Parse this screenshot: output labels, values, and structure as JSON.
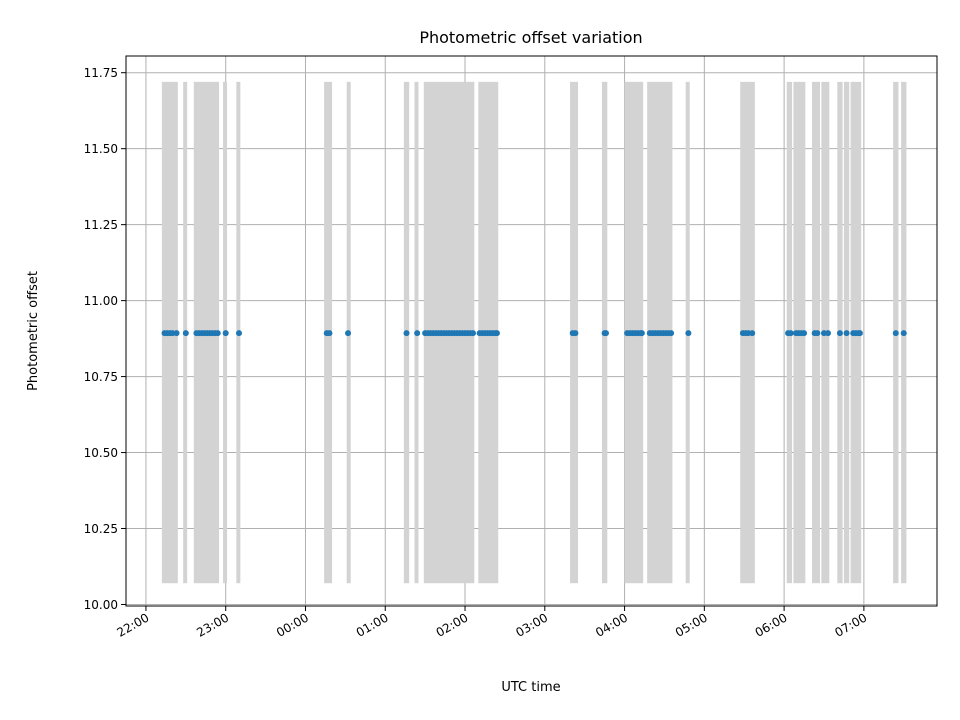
{
  "chart_data": {
    "type": "scatter",
    "title": "Photometric offset variation",
    "xlabel": "UTC time",
    "ylabel": "Photometric offset",
    "grid": true,
    "xlim": [
      "21:45",
      "07:55"
    ],
    "ylim": [
      9.995,
      11.805
    ],
    "x_ticks": [
      "22:00",
      "23:00",
      "00:00",
      "01:00",
      "02:00",
      "03:00",
      "04:00",
      "05:00",
      "06:00",
      "07:00"
    ],
    "y_ticks": [
      "10.00",
      "10.25",
      "10.50",
      "10.75",
      "11.00",
      "11.25",
      "11.50",
      "11.75"
    ],
    "shaded_range_y": [
      10.07,
      11.72
    ],
    "shaded_intervals": [
      [
        "22:12",
        "22:24"
      ],
      [
        "22:28",
        "22:31"
      ],
      [
        "22:36",
        "22:55"
      ],
      [
        "22:58",
        "23:01"
      ],
      [
        "23:08",
        "23:11"
      ],
      [
        "00:14",
        "00:20"
      ],
      [
        "00:31",
        "00:34"
      ],
      [
        "01:14",
        "01:18"
      ],
      [
        "01:22",
        "01:25"
      ],
      [
        "01:29",
        "02:07"
      ],
      [
        "02:10",
        "02:25"
      ],
      [
        "03:19",
        "03:25"
      ],
      [
        "03:43",
        "03:47"
      ],
      [
        "04:00",
        "04:14"
      ],
      [
        "04:17",
        "04:36"
      ],
      [
        "04:46",
        "04:49"
      ],
      [
        "05:27",
        "05:38"
      ],
      [
        "06:02",
        "06:06"
      ],
      [
        "06:07",
        "06:16"
      ],
      [
        "06:21",
        "06:27"
      ],
      [
        "06:28",
        "06:34"
      ],
      [
        "06:40",
        "06:44"
      ],
      [
        "06:45",
        "06:49"
      ],
      [
        "06:50",
        "06:58"
      ],
      [
        "07:22",
        "07:26"
      ],
      [
        "07:28",
        "07:32"
      ]
    ],
    "series": [
      {
        "color": "#1f77b4",
        "y": 10.893,
        "x": [
          "22:14",
          "22:16",
          "22:18",
          "22:20",
          "22:23",
          "22:30",
          "22:38",
          "22:40",
          "22:42",
          "22:44",
          "22:46",
          "22:48",
          "22:50",
          "22:52",
          "22:54",
          "23:00",
          "23:10",
          "00:16",
          "00:18",
          "00:32",
          "01:16",
          "01:24",
          "01:30",
          "01:32",
          "01:34",
          "01:36",
          "01:38",
          "01:40",
          "01:42",
          "01:44",
          "01:46",
          "01:48",
          "01:50",
          "01:52",
          "01:54",
          "01:56",
          "01:58",
          "02:00",
          "02:02",
          "02:04",
          "02:06",
          "02:11",
          "02:13",
          "02:15",
          "02:17",
          "02:19",
          "02:21",
          "02:23",
          "02:24",
          "03:21",
          "03:23",
          "03:45",
          "03:46",
          "04:02",
          "04:04",
          "04:06",
          "04:08",
          "04:10",
          "04:12",
          "04:13",
          "04:19",
          "04:21",
          "04:23",
          "04:25",
          "04:27",
          "04:29",
          "04:31",
          "04:33",
          "04:35",
          "04:48",
          "05:29",
          "05:31",
          "05:33",
          "05:36",
          "06:03",
          "06:05",
          "06:09",
          "06:11",
          "06:13",
          "06:15",
          "06:23",
          "06:25",
          "06:30",
          "06:33",
          "06:42",
          "06:47",
          "06:52",
          "06:54",
          "06:56",
          "06:57",
          "07:24",
          "07:30"
        ]
      }
    ]
  }
}
